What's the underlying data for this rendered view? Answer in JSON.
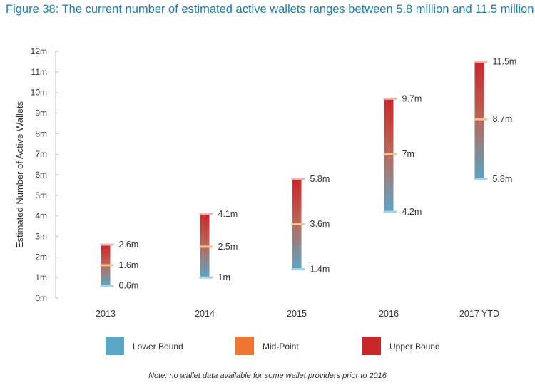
{
  "figure": {
    "title": "Figure 38: The current number of estimated active wallets ranges between 5.8 million and 11.5 million",
    "note": "Note: no wallet data available for some wallet providers prior to 2016"
  },
  "colors": {
    "lower": "#5aa6c4",
    "mid": "#ee7630",
    "upper": "#c9262a",
    "axis": "#bbbbbb"
  },
  "chart_data": {
    "type": "bar",
    "subtype": "floating-range",
    "ylabel": "Estimated Number of Active Wallets",
    "xlabel": "",
    "ylim": [
      0,
      12
    ],
    "yticks": [
      "0m",
      "1m",
      "2m",
      "3m",
      "4m",
      "5m",
      "6m",
      "7m",
      "8m",
      "9m",
      "10m",
      "11m",
      "12m"
    ],
    "categories": [
      "2013",
      "2014",
      "2015",
      "2016",
      "2017 YTD"
    ],
    "series": [
      {
        "name": "Lower Bound",
        "values": [
          0.6,
          1.0,
          1.4,
          4.2,
          5.8
        ],
        "labels": [
          "0.6m",
          "1m",
          "1.4m",
          "4.2m",
          "5.8m"
        ]
      },
      {
        "name": "Mid-Point",
        "values": [
          1.6,
          2.5,
          3.6,
          7.0,
          8.7
        ],
        "labels": [
          "1.6m",
          "2.5m",
          "3.6m",
          "7m",
          "8.7m"
        ]
      },
      {
        "name": "Upper Bound",
        "values": [
          2.6,
          4.1,
          5.8,
          9.7,
          11.5
        ],
        "labels": [
          "2.6m",
          "4.1m",
          "5.8m",
          "9.7m",
          "11.5m"
        ]
      }
    ],
    "legend": {
      "position": "bottom",
      "items": [
        "Lower Bound",
        "Mid-Point",
        "Upper Bound"
      ]
    },
    "grid": false
  }
}
